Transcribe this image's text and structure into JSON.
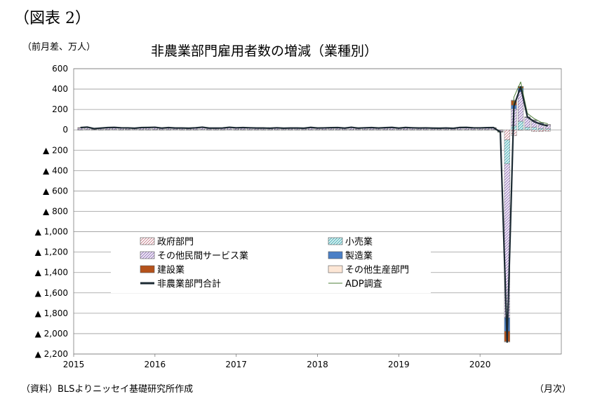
{
  "header": {
    "figure_label": "（図表 2）",
    "unit": "（前月差、万人）",
    "title": "非農業部門雇用者数の増減（業種別）"
  },
  "footer": {
    "source": "（資料）BLSよりニッセイ基礎研究所作成",
    "x_unit": "（月次）"
  },
  "chart_data": {
    "type": "bar",
    "title": "非農業部門雇用者数の増減（業種別）",
    "ylabel": "（前月差、万人）",
    "xlabel": "（月次）",
    "ylim": [
      -2200,
      600
    ],
    "y_ticks": [
      600,
      400,
      200,
      0,
      -200,
      -400,
      -600,
      -800,
      -1000,
      -1200,
      -1400,
      -1600,
      -1800,
      -2000,
      -2200
    ],
    "y_tick_labels": [
      "600",
      "400",
      "200",
      "0",
      "▲ 200",
      "▲ 400",
      "▲ 600",
      "▲ 800",
      "▲ 1,000",
      "▲ 1,200",
      "▲ 1,400",
      "▲ 1,600",
      "▲ 1,800",
      "▲ 2,000",
      "▲ 2,200"
    ],
    "x_tick_labels": [
      "2015",
      "2016",
      "2017",
      "2018",
      "2019",
      "2020"
    ],
    "grid": true,
    "legend_position": "lower-center",
    "colors": {
      "government": "#e8c8cc",
      "retail": "#9ed8da",
      "other_services": "#c9b4dc",
      "manufacturing": "#4a7fc6",
      "construction": "#b5521b",
      "other_goods": "#f5d2b7",
      "total_line": "#1c2a33",
      "adp_line": "#4f7f3a"
    },
    "legend": [
      {
        "key": "government",
        "label": "政府部門",
        "kind": "bar"
      },
      {
        "key": "retail",
        "label": "小売業",
        "kind": "bar"
      },
      {
        "key": "other_services",
        "label": "その他民間サービス業",
        "kind": "bar"
      },
      {
        "key": "manufacturing",
        "label": "製造業",
        "kind": "bar"
      },
      {
        "key": "construction",
        "label": "建設業",
        "kind": "bar"
      },
      {
        "key": "other_goods",
        "label": "その他生産部門",
        "kind": "bar"
      },
      {
        "key": "total_line",
        "label": "非農業部門合計",
        "kind": "line"
      },
      {
        "key": "adp_line",
        "label": "ADP調査",
        "kind": "line"
      }
    ],
    "x_period": {
      "start": "2015-01",
      "end": "2020-10"
    },
    "series": {
      "government": [
        1,
        2,
        1,
        1,
        1,
        2,
        1,
        1,
        2,
        1,
        1,
        1,
        1,
        1,
        2,
        1,
        1,
        1,
        2,
        1,
        1,
        1,
        2,
        1,
        1,
        1,
        1,
        1,
        1,
        1,
        1,
        1,
        1,
        1,
        1,
        1,
        1,
        1,
        1,
        1,
        1,
        1,
        1,
        1,
        1,
        1,
        1,
        1,
        1,
        1,
        1,
        1,
        1,
        1,
        1,
        1,
        1,
        1,
        1,
        1,
        1,
        1,
        -2,
        -98,
        -59,
        -5,
        -2,
        -18,
        -17,
        -14
      ],
      "retail": [
        1,
        1,
        2,
        1,
        2,
        1,
        1,
        2,
        1,
        1,
        1,
        2,
        1,
        1,
        1,
        1,
        1,
        1,
        1,
        1,
        1,
        1,
        1,
        1,
        1,
        1,
        1,
        1,
        1,
        1,
        1,
        1,
        1,
        1,
        1,
        1,
        1,
        1,
        1,
        1,
        1,
        1,
        1,
        1,
        1,
        1,
        1,
        1,
        1,
        1,
        1,
        1,
        1,
        1,
        1,
        1,
        1,
        1,
        1,
        1,
        1,
        1,
        -3,
        -236,
        40,
        84,
        25,
        25,
        14,
        10
      ],
      "other_services": [
        17,
        20,
        10,
        13,
        17,
        18,
        15,
        13,
        10,
        17,
        18,
        20,
        13,
        16,
        12,
        14,
        10,
        15,
        20,
        13,
        12,
        14,
        18,
        15,
        18,
        16,
        14,
        13,
        12,
        16,
        12,
        13,
        14,
        12,
        18,
        14,
        15,
        16,
        17,
        13,
        20,
        12,
        15,
        17,
        14,
        16,
        19,
        13,
        18,
        16,
        14,
        15,
        13,
        12,
        14,
        11,
        18,
        19,
        16,
        15,
        17,
        18,
        -10,
        -1510,
        166,
        289,
        95,
        67,
        46,
        37
      ],
      "manufacturing": [
        1,
        2,
        1,
        1,
        1,
        2,
        1,
        1,
        2,
        1,
        1,
        1,
        1,
        1,
        2,
        1,
        1,
        1,
        2,
        1,
        1,
        1,
        2,
        1,
        1,
        1,
        1,
        1,
        1,
        1,
        1,
        1,
        1,
        1,
        1,
        1,
        1,
        1,
        1,
        1,
        1,
        1,
        1,
        1,
        1,
        1,
        1,
        1,
        1,
        1,
        1,
        1,
        1,
        1,
        1,
        1,
        1,
        1,
        1,
        1,
        1,
        1,
        -2,
        -133,
        36,
        36,
        4,
        3,
        7,
        4
      ],
      "construction": [
        2,
        2,
        1,
        2,
        1,
        1,
        2,
        2,
        1,
        2,
        1,
        1,
        1,
        2,
        1,
        1,
        2,
        1,
        1,
        1,
        2,
        1,
        1,
        1,
        1,
        1,
        1,
        2,
        1,
        1,
        1,
        2,
        1,
        1,
        1,
        1,
        1,
        1,
        1,
        1,
        1,
        2,
        1,
        1,
        1,
        1,
        1,
        1,
        1,
        1,
        1,
        1,
        1,
        1,
        1,
        1,
        1,
        1,
        1,
        1,
        1,
        1,
        -3,
        -100,
        45,
        16,
        3,
        1,
        3,
        1
      ],
      "other_goods": [
        0,
        0,
        0,
        0,
        0,
        0,
        0,
        0,
        0,
        0,
        0,
        0,
        0,
        0,
        0,
        0,
        0,
        0,
        0,
        0,
        0,
        0,
        0,
        0,
        0,
        0,
        0,
        0,
        0,
        0,
        0,
        0,
        0,
        0,
        0,
        0,
        0,
        0,
        0,
        0,
        0,
        0,
        0,
        0,
        0,
        0,
        0,
        0,
        0,
        0,
        0,
        0,
        0,
        0,
        0,
        0,
        0,
        0,
        0,
        0,
        0,
        0,
        -1,
        -6,
        4,
        2,
        1,
        2,
        2,
        1
      ],
      "total_line": [
        22,
        27,
        12,
        17,
        22,
        24,
        20,
        19,
        16,
        22,
        23,
        25,
        17,
        22,
        18,
        18,
        16,
        20,
        26,
        17,
        17,
        18,
        25,
        20,
        22,
        20,
        18,
        18,
        16,
        20,
        16,
        18,
        18,
        16,
        24,
        18,
        19,
        21,
        22,
        17,
        25,
        17,
        20,
        22,
        18,
        21,
        24,
        17,
        23,
        20,
        18,
        19,
        17,
        16,
        18,
        15,
        23,
        24,
        20,
        19,
        21,
        22,
        -21,
        -2083,
        233,
        422,
        126,
        80,
        55,
        38
      ],
      "adp_line": [
        20,
        22,
        14,
        16,
        20,
        22,
        19,
        18,
        17,
        21,
        22,
        24,
        18,
        20,
        17,
        17,
        17,
        18,
        24,
        18,
        17,
        18,
        22,
        19,
        21,
        20,
        18,
        17,
        17,
        19,
        17,
        18,
        18,
        17,
        22,
        19,
        20,
        20,
        21,
        18,
        23,
        18,
        19,
        21,
        18,
        20,
        22,
        18,
        21,
        19,
        18,
        18,
        17,
        16,
        17,
        16,
        20,
        21,
        19,
        18,
        19,
        20,
        -30,
        -1955,
        321,
        470,
        160,
        110,
        75,
        60
      ]
    }
  }
}
